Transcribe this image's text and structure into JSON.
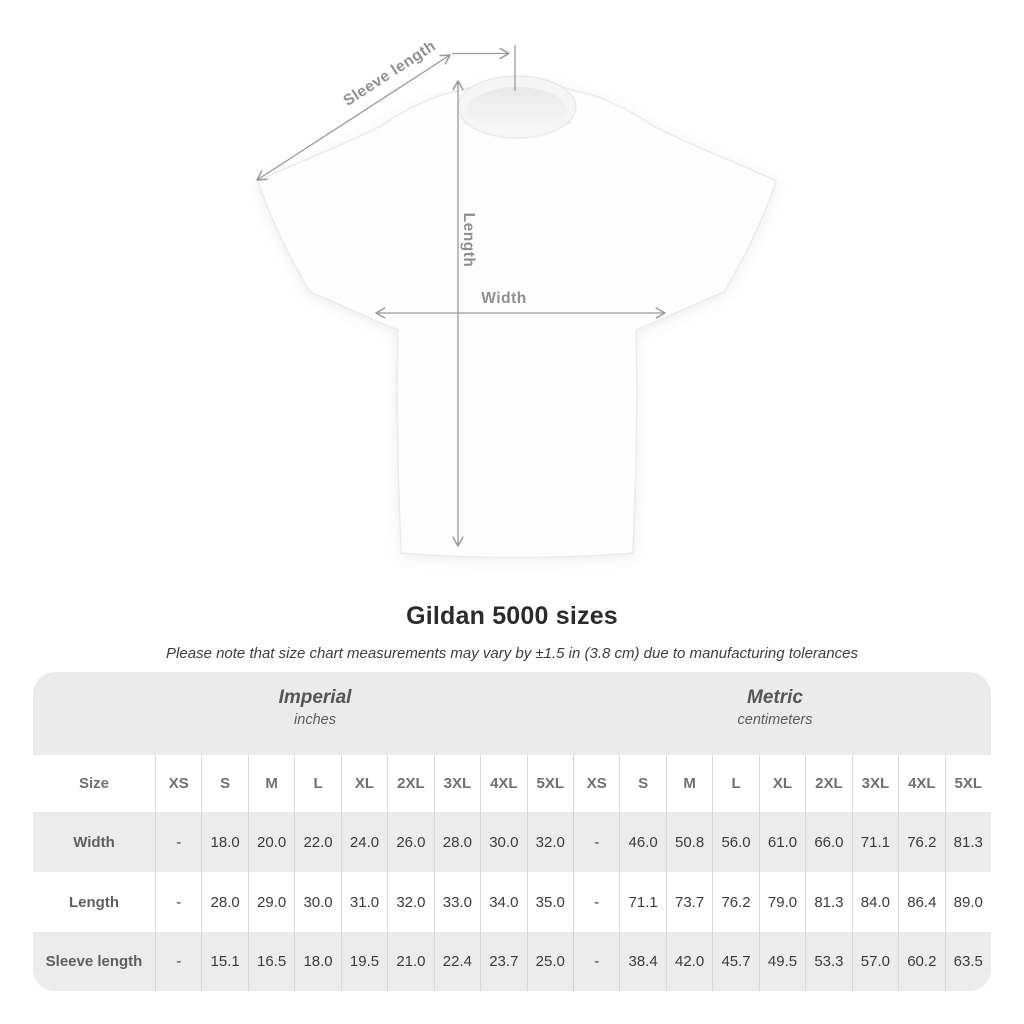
{
  "diagram": {
    "labels": {
      "sleeve_length": "Sleeve length",
      "length": "Length",
      "width": "Width"
    },
    "arrow_color": "#9a9a9a",
    "label_color": "#8f8f8f"
  },
  "title": "Gildan 5000 sizes",
  "subtitle": "Please note that size chart measurements may vary by ±1.5 in (3.8 cm) due to manufacturing tolerances",
  "table": {
    "size_label": "Size",
    "unit_groups": [
      {
        "name": "Imperial",
        "unit": "inches"
      },
      {
        "name": "Metric",
        "unit": "centimeters"
      }
    ],
    "sizes": [
      "XS",
      "S",
      "M",
      "L",
      "XL",
      "2XL",
      "3XL",
      "4XL",
      "5XL"
    ],
    "rows": [
      {
        "label": "Width",
        "imperial": [
          "-",
          "18.0",
          "20.0",
          "22.0",
          "24.0",
          "26.0",
          "28.0",
          "30.0",
          "32.0"
        ],
        "metric": [
          "-",
          "46.0",
          "50.8",
          "56.0",
          "61.0",
          "66.0",
          "71.1",
          "76.2",
          "81.3"
        ]
      },
      {
        "label": "Length",
        "imperial": [
          "-",
          "28.0",
          "29.0",
          "30.0",
          "31.0",
          "32.0",
          "33.0",
          "34.0",
          "35.0"
        ],
        "metric": [
          "-",
          "71.1",
          "73.7",
          "76.2",
          "79.0",
          "81.3",
          "84.0",
          "86.4",
          "89.0"
        ]
      },
      {
        "label": "Sleeve length",
        "imperial": [
          "-",
          "15.1",
          "16.5",
          "18.0",
          "19.5",
          "21.0",
          "22.4",
          "23.7",
          "25.0"
        ],
        "metric": [
          "-",
          "38.4",
          "42.0",
          "45.7",
          "49.5",
          "53.3",
          "57.0",
          "60.2",
          "63.5"
        ]
      }
    ],
    "colors": {
      "band_background": "#ebebeb",
      "alt_row_background": "#ececec",
      "divider": "#d8d8d8"
    }
  }
}
